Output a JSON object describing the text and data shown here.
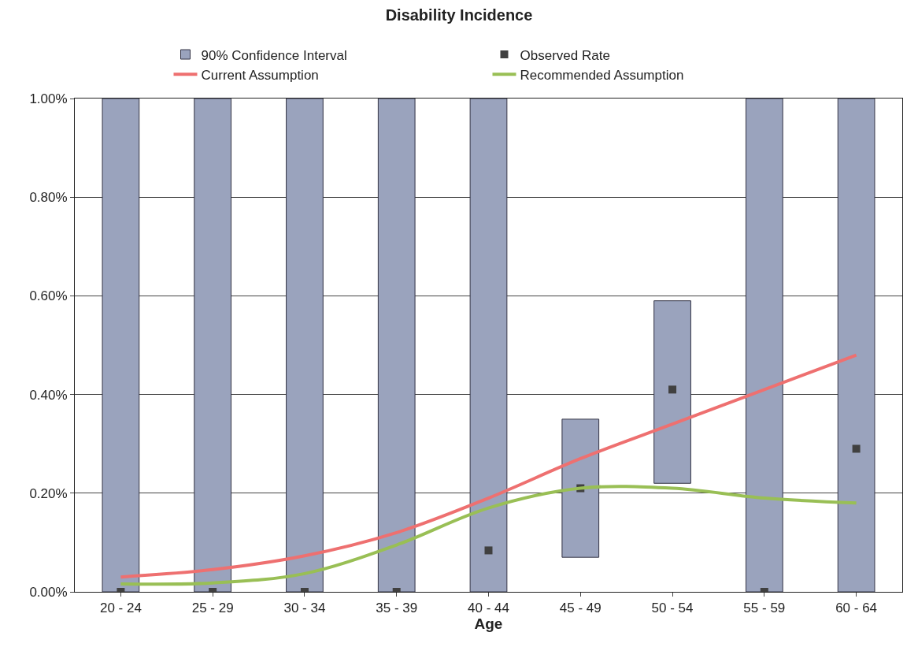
{
  "chart_data": {
    "type": "bar",
    "title": "Disability Incidence",
    "xlabel": "Age",
    "categories": [
      "20 - 24",
      "25 - 29",
      "30 - 34",
      "35 - 39",
      "40 - 44",
      "45 - 49",
      "50 - 54",
      "55 - 59",
      "60 - 64"
    ],
    "series": [
      {
        "name": "90% Confidence Interval",
        "color": "#9aa3bd",
        "base": [
          0,
          0,
          0,
          0,
          0,
          0.07,
          0.22,
          0,
          0
        ],
        "values": [
          1.0,
          1.0,
          1.0,
          1.0,
          1.0,
          0.28,
          0.37,
          1.0,
          1.0
        ]
      },
      {
        "name": "Observed Rate",
        "type": "scatter",
        "color": "#404040",
        "marker": "square",
        "values": [
          0,
          0,
          0,
          0,
          0.084,
          0.21,
          0.41,
          0,
          0.29
        ]
      },
      {
        "name": "Current Assumption",
        "type": "line",
        "color": "#ee7070",
        "marker": "none",
        "line_style": "solid",
        "values": [
          0.03,
          0.045,
          0.073,
          0.12,
          0.19,
          0.27,
          0.34,
          0.41,
          0.48
        ]
      },
      {
        "name": "Recommended Assumption",
        "type": "line",
        "color": "#99bf55",
        "marker": "none",
        "line_style": "solid",
        "values": [
          0.016,
          0.018,
          0.037,
          0.095,
          0.17,
          0.21,
          0.21,
          0.19,
          0.18
        ]
      }
    ],
    "ylim": [
      0,
      1.0
    ],
    "yticks": [
      {
        "value": 0,
        "label": "0.00%"
      },
      {
        "value": 0.2,
        "label": "0.20%"
      },
      {
        "value": 0.4,
        "label": "0.40%"
      },
      {
        "value": 0.6,
        "label": "0.60%"
      },
      {
        "value": 0.8,
        "label": "0.80%"
      },
      {
        "value": 1.0,
        "label": "1.00%"
      }
    ],
    "grid": "y",
    "legend": "top"
  }
}
